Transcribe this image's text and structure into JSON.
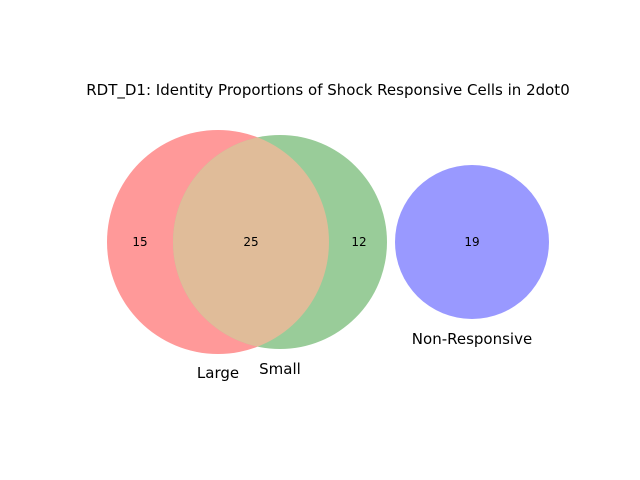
{
  "title": "RDT_D1: Identity Proportions of Shock Responsive Cells in 2dot0",
  "sets": {
    "large": {
      "label": "Large",
      "only_count": "15",
      "color": "#ff9999"
    },
    "small": {
      "label": "Small",
      "only_count": "12",
      "color": "#99cc99"
    },
    "non_responsive": {
      "label": "Non-Responsive",
      "count": "19",
      "color": "#9999ff"
    }
  },
  "overlap": {
    "large_small_count": "25",
    "color": "#e0bc99"
  }
}
